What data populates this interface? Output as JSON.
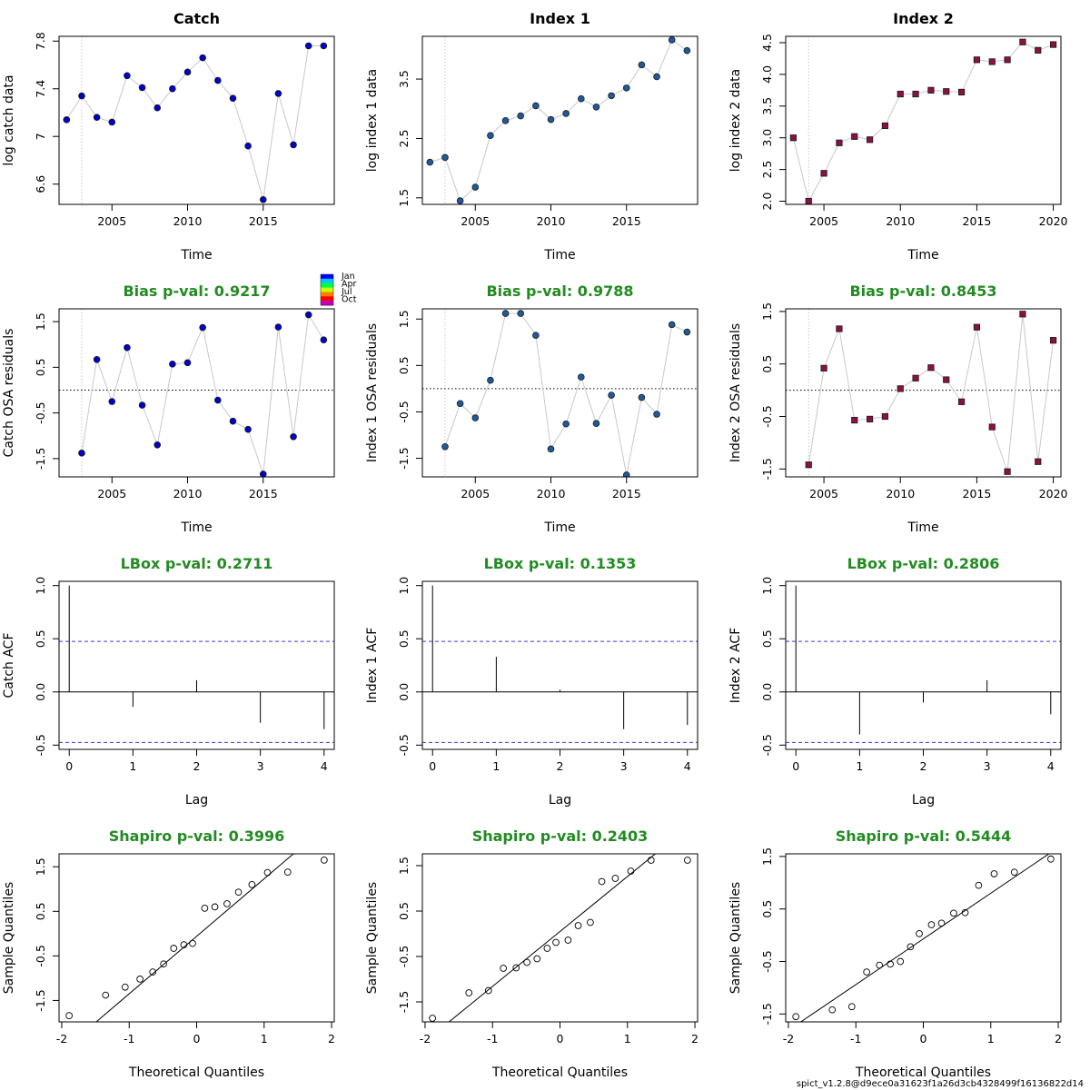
{
  "footer": "spict_v1.2.8@d9ece0a31623f1a26d3cb4328499f16136822d14",
  "legend": {
    "months": [
      "Jan",
      "Apr",
      "Jul",
      "Oct"
    ],
    "colors": [
      "#0000ff",
      "#00c8ff",
      "#00ff40",
      "#c8ff00",
      "#ff8000",
      "#ff0000",
      "#c000c0"
    ]
  },
  "colors": {
    "catch": "#0000cd",
    "index1": "#1f5a9a",
    "index2": "#8b1043",
    "pval_title": "#228b22",
    "conf_band": "#3b3bd6",
    "connector": "#c8c8c8"
  },
  "chart_data": [
    {
      "id": "catch-data",
      "type": "scatter",
      "title": "Catch",
      "title_color": "#000000",
      "xlabel": "Time",
      "ylabel": "log catch data",
      "xlim": [
        2001.5,
        2019.7
      ],
      "ylim": [
        6.43,
        7.84
      ],
      "xticks": [
        2005,
        2010,
        2015
      ],
      "yticks": [
        6.6,
        7.0,
        7.4,
        7.8
      ],
      "vline": 2003,
      "marker": "circle",
      "color_key": "catch",
      "x": [
        2002,
        2003,
        2004,
        2005,
        2006,
        2007,
        2008,
        2009,
        2010,
        2011,
        2012,
        2013,
        2014,
        2015,
        2016,
        2017,
        2018,
        2019
      ],
      "y": [
        7.14,
        7.34,
        7.16,
        7.12,
        7.51,
        7.41,
        7.24,
        7.4,
        7.54,
        7.66,
        7.47,
        7.32,
        6.92,
        6.47,
        7.36,
        6.93,
        7.76,
        7.76
      ]
    },
    {
      "id": "index1-data",
      "type": "scatter",
      "title": "Index 1",
      "title_color": "#000000",
      "xlabel": "Time",
      "ylabel": "log index 1 data",
      "xlim": [
        2001.5,
        2019.7
      ],
      "ylim": [
        1.39,
        4.22
      ],
      "xticks": [
        2005,
        2010,
        2015
      ],
      "yticks": [
        1.5,
        2.5,
        3.5
      ],
      "vline": 2003,
      "marker": "circle",
      "color_key": "index1",
      "x": [
        2002,
        2003,
        2004,
        2005,
        2006,
        2007,
        2008,
        2009,
        2010,
        2011,
        2012,
        2013,
        2014,
        2015,
        2016,
        2017,
        2018,
        2019
      ],
      "y": [
        2.1,
        2.18,
        1.45,
        1.68,
        2.55,
        2.8,
        2.88,
        3.05,
        2.82,
        2.92,
        3.17,
        3.03,
        3.22,
        3.35,
        3.74,
        3.54,
        4.16,
        3.98
      ]
    },
    {
      "id": "index2-data",
      "type": "scatter",
      "title": "Index 2",
      "title_color": "#000000",
      "xlabel": "Time",
      "ylabel": "log index 2 data",
      "xlim": [
        2002.5,
        2020.5
      ],
      "ylim": [
        1.95,
        4.6
      ],
      "xticks": [
        2005,
        2010,
        2015,
        2020
      ],
      "yticks": [
        2.0,
        2.5,
        3.0,
        3.5,
        4.0,
        4.5
      ],
      "vline": 2004,
      "marker": "square",
      "color_key": "index2",
      "x": [
        2003,
        2004,
        2005,
        2006,
        2007,
        2008,
        2009,
        2010,
        2011,
        2012,
        2013,
        2014,
        2015,
        2016,
        2017,
        2018,
        2019,
        2020
      ],
      "y": [
        3.0,
        2.0,
        2.44,
        2.92,
        3.02,
        2.97,
        3.19,
        3.69,
        3.69,
        3.75,
        3.73,
        3.72,
        4.23,
        4.2,
        4.23,
        4.51,
        4.38,
        4.47
      ]
    },
    {
      "id": "catch-osa",
      "type": "scatter",
      "title": "Bias p-val: 0.9217",
      "title_color": "#228b22",
      "xlabel": "Time",
      "ylabel": "Catch OSA residuals",
      "xlim": [
        2001.5,
        2019.7
      ],
      "ylim": [
        -1.9,
        1.78
      ],
      "xticks": [
        2005,
        2010,
        2015
      ],
      "yticks": [
        -1.5,
        -0.5,
        0.5,
        1.5
      ],
      "vline": 2003,
      "hline": 0,
      "marker": "circle",
      "color_key": "catch",
      "x": [
        2003,
        2004,
        2005,
        2006,
        2007,
        2008,
        2009,
        2010,
        2011,
        2012,
        2013,
        2014,
        2015,
        2016,
        2017,
        2018,
        2019
      ],
      "y": [
        -1.38,
        0.67,
        -0.25,
        0.93,
        -0.33,
        -1.2,
        0.57,
        0.6,
        1.37,
        -0.22,
        -0.68,
        -0.86,
        -1.84,
        1.38,
        -1.02,
        1.65,
        1.1
      ]
    },
    {
      "id": "index1-osa",
      "type": "scatter",
      "title": "Bias p-val: 0.9788",
      "title_color": "#228b22",
      "xlabel": "Time",
      "ylabel": "Index 1 OSA residuals",
      "xlim": [
        2001.5,
        2019.7
      ],
      "ylim": [
        -1.9,
        1.72
      ],
      "xticks": [
        2005,
        2010,
        2015
      ],
      "yticks": [
        -1.5,
        -0.5,
        0.5,
        1.5
      ],
      "vline": 2003,
      "hline": 0,
      "marker": "circle",
      "color_key": "index1",
      "x": [
        2003,
        2004,
        2005,
        2006,
        2007,
        2008,
        2009,
        2010,
        2011,
        2012,
        2013,
        2014,
        2015,
        2016,
        2017,
        2018,
        2019
      ],
      "y": [
        -1.25,
        -0.32,
        -0.63,
        0.18,
        1.62,
        1.62,
        1.15,
        -1.3,
        -0.76,
        0.25,
        -0.75,
        -0.14,
        -1.86,
        -0.19,
        -0.55,
        1.38,
        1.22
      ]
    },
    {
      "id": "index2-osa",
      "type": "scatter",
      "title": "Bias p-val: 0.8453",
      "title_color": "#228b22",
      "xlabel": "Time",
      "ylabel": "Index 2 OSA residuals",
      "xlim": [
        2002.5,
        2020.5
      ],
      "ylim": [
        -1.65,
        1.55
      ],
      "xticks": [
        2005,
        2010,
        2015,
        2020
      ],
      "yticks": [
        -1.5,
        -0.5,
        0.5,
        1.5
      ],
      "vline": 2004,
      "hline": 0,
      "marker": "square",
      "color_key": "index2",
      "x": [
        2004,
        2005,
        2006,
        2007,
        2008,
        2009,
        2010,
        2011,
        2012,
        2013,
        2014,
        2015,
        2016,
        2017,
        2018,
        2019,
        2020
      ],
      "y": [
        -1.42,
        0.42,
        1.17,
        -0.57,
        -0.55,
        -0.5,
        0.03,
        0.23,
        0.43,
        0.2,
        -0.22,
        1.2,
        -0.7,
        -1.55,
        1.45,
        -1.36,
        0.95
      ]
    },
    {
      "id": "catch-acf",
      "type": "bar",
      "title": "LBox p-val: 0.2711",
      "title_color": "#228b22",
      "xlabel": "Lag",
      "ylabel": "Catch ACF",
      "xlim": [
        -0.16,
        4.16
      ],
      "ylim": [
        -0.54,
        1.04
      ],
      "xticks": [
        0,
        1,
        2,
        3,
        4
      ],
      "yticks": [
        -0.5,
        0.0,
        0.5,
        1.0
      ],
      "conf": 0.475,
      "lags": [
        0,
        1,
        2,
        3,
        4
      ],
      "values": [
        1.0,
        -0.14,
        0.11,
        -0.29,
        -0.35
      ]
    },
    {
      "id": "index1-acf",
      "type": "bar",
      "title": "LBox p-val: 0.1353",
      "title_color": "#228b22",
      "xlabel": "Lag",
      "ylabel": "Index 1 ACF",
      "xlim": [
        -0.16,
        4.16
      ],
      "ylim": [
        -0.54,
        1.04
      ],
      "xticks": [
        0,
        1,
        2,
        3,
        4
      ],
      "yticks": [
        -0.5,
        0.0,
        0.5,
        1.0
      ],
      "conf": 0.475,
      "lags": [
        0,
        1,
        2,
        3,
        4
      ],
      "values": [
        1.0,
        0.33,
        0.02,
        -0.35,
        -0.31
      ]
    },
    {
      "id": "index2-acf",
      "type": "bar",
      "title": "LBox p-val: 0.2806",
      "title_color": "#228b22",
      "xlabel": "Lag",
      "ylabel": "Index 2 ACF",
      "xlim": [
        -0.16,
        4.16
      ],
      "ylim": [
        -0.54,
        1.04
      ],
      "xticks": [
        0,
        1,
        2,
        3,
        4
      ],
      "yticks": [
        -0.5,
        0.0,
        0.5,
        1.0
      ],
      "conf": 0.475,
      "lags": [
        0,
        1,
        2,
        3,
        4
      ],
      "values": [
        1.0,
        -0.4,
        -0.1,
        0.11,
        -0.21
      ]
    },
    {
      "id": "catch-qq",
      "type": "scatter",
      "title": "Shapiro p-val: 0.3996",
      "title_color": "#228b22",
      "xlabel": "Theoretical Quantiles",
      "ylabel": "Sample Quantiles",
      "xlim": [
        -2.04,
        2.04
      ],
      "ylim": [
        -1.98,
        1.79
      ],
      "xticks": [
        -2,
        -1,
        0,
        1,
        2
      ],
      "yticks": [
        -1.5,
        -0.5,
        0.5,
        1.5
      ],
      "marker": "open-circle",
      "qqline": {
        "slope": 1.29,
        "intercept": -0.06
      },
      "x": [
        -1.89,
        -1.35,
        -1.06,
        -0.84,
        -0.65,
        -0.49,
        -0.34,
        -0.19,
        -0.06,
        0.12,
        0.27,
        0.45,
        0.62,
        0.82,
        1.05,
        1.35,
        1.89
      ],
      "y": [
        -1.84,
        -1.38,
        -1.2,
        -1.02,
        -0.86,
        -0.68,
        -0.33,
        -0.25,
        -0.22,
        0.57,
        0.6,
        0.67,
        0.93,
        1.1,
        1.37,
        1.38,
        1.65
      ]
    },
    {
      "id": "index1-qq",
      "type": "scatter",
      "title": "Shapiro p-val: 0.2403",
      "title_color": "#228b22",
      "xlabel": "Theoretical Quantiles",
      "ylabel": "Sample Quantiles",
      "xlim": [
        -2.04,
        2.04
      ],
      "ylim": [
        -1.94,
        1.76
      ],
      "xticks": [
        -2,
        -1,
        0,
        1,
        2
      ],
      "yticks": [
        -1.5,
        -0.5,
        0.5,
        1.5
      ],
      "marker": "open-circle",
      "qqline": {
        "slope": 1.21,
        "intercept": 0.05
      },
      "x": [
        -1.89,
        -1.35,
        -1.06,
        -0.84,
        -0.65,
        -0.49,
        -0.34,
        -0.19,
        -0.06,
        0.12,
        0.27,
        0.45,
        0.62,
        0.82,
        1.05,
        1.35,
        1.89
      ],
      "y": [
        -1.86,
        -1.3,
        -1.25,
        -0.76,
        -0.75,
        -0.63,
        -0.55,
        -0.32,
        -0.19,
        -0.14,
        0.18,
        0.25,
        1.15,
        1.22,
        1.38,
        1.62,
        1.62
      ]
    },
    {
      "id": "index2-qq",
      "type": "scatter",
      "title": "Shapiro p-val: 0.5444",
      "title_color": "#228b22",
      "xlabel": "Theoretical Quantiles",
      "ylabel": "Sample Quantiles",
      "xlim": [
        -2.04,
        2.04
      ],
      "ylim": [
        -1.65,
        1.55
      ],
      "xticks": [
        -2,
        -1,
        0,
        1,
        2
      ],
      "yticks": [
        -1.5,
        -0.5,
        0.5,
        1.5
      ],
      "marker": "open-circle",
      "qqline": {
        "slope": 0.87,
        "intercept": -0.07
      },
      "x": [
        -1.89,
        -1.35,
        -1.06,
        -0.84,
        -0.65,
        -0.49,
        -0.34,
        -0.19,
        -0.06,
        0.12,
        0.27,
        0.45,
        0.62,
        0.82,
        1.05,
        1.35,
        1.89
      ],
      "y": [
        -1.55,
        -1.42,
        -1.36,
        -0.7,
        -0.57,
        -0.55,
        -0.5,
        -0.22,
        0.03,
        0.2,
        0.23,
        0.42,
        0.43,
        0.95,
        1.17,
        1.2,
        1.45
      ]
    }
  ]
}
